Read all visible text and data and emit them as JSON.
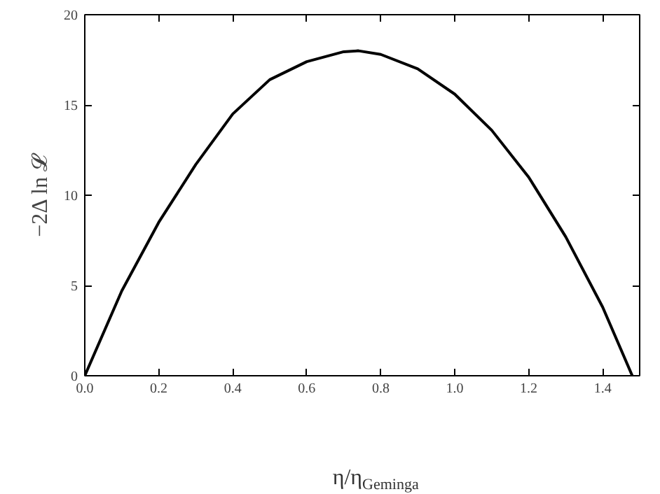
{
  "chart_data": {
    "type": "line",
    "xlabel": "η/η$_{Geminga}$",
    "ylabel": "−2Δ ln 𝓛",
    "x": [
      0.0,
      0.1,
      0.2,
      0.3,
      0.4,
      0.5,
      0.6,
      0.7,
      0.74,
      0.8,
      0.9,
      1.0,
      1.1,
      1.2,
      1.3,
      1.4,
      1.48
    ],
    "series": [
      {
        "color": "#000000",
        "values": [
          0.0,
          4.7,
          8.5,
          11.7,
          14.5,
          16.4,
          17.4,
          17.95,
          18.0,
          17.8,
          17.0,
          15.6,
          13.6,
          11.0,
          7.7,
          3.8,
          0.0
        ]
      }
    ],
    "xlim": [
      0.0,
      1.5
    ],
    "ylim": [
      0,
      20
    ],
    "xticks": [
      {
        "value": 0.0,
        "label": "0.0"
      },
      0.2,
      0.4,
      0.6,
      0.8,
      {
        "value": 1.0,
        "label": "1.0"
      },
      1.2,
      1.4
    ],
    "yticks": [
      0,
      5,
      10,
      15,
      20
    ],
    "grid": false,
    "marker": "none",
    "line_style": "solid"
  }
}
